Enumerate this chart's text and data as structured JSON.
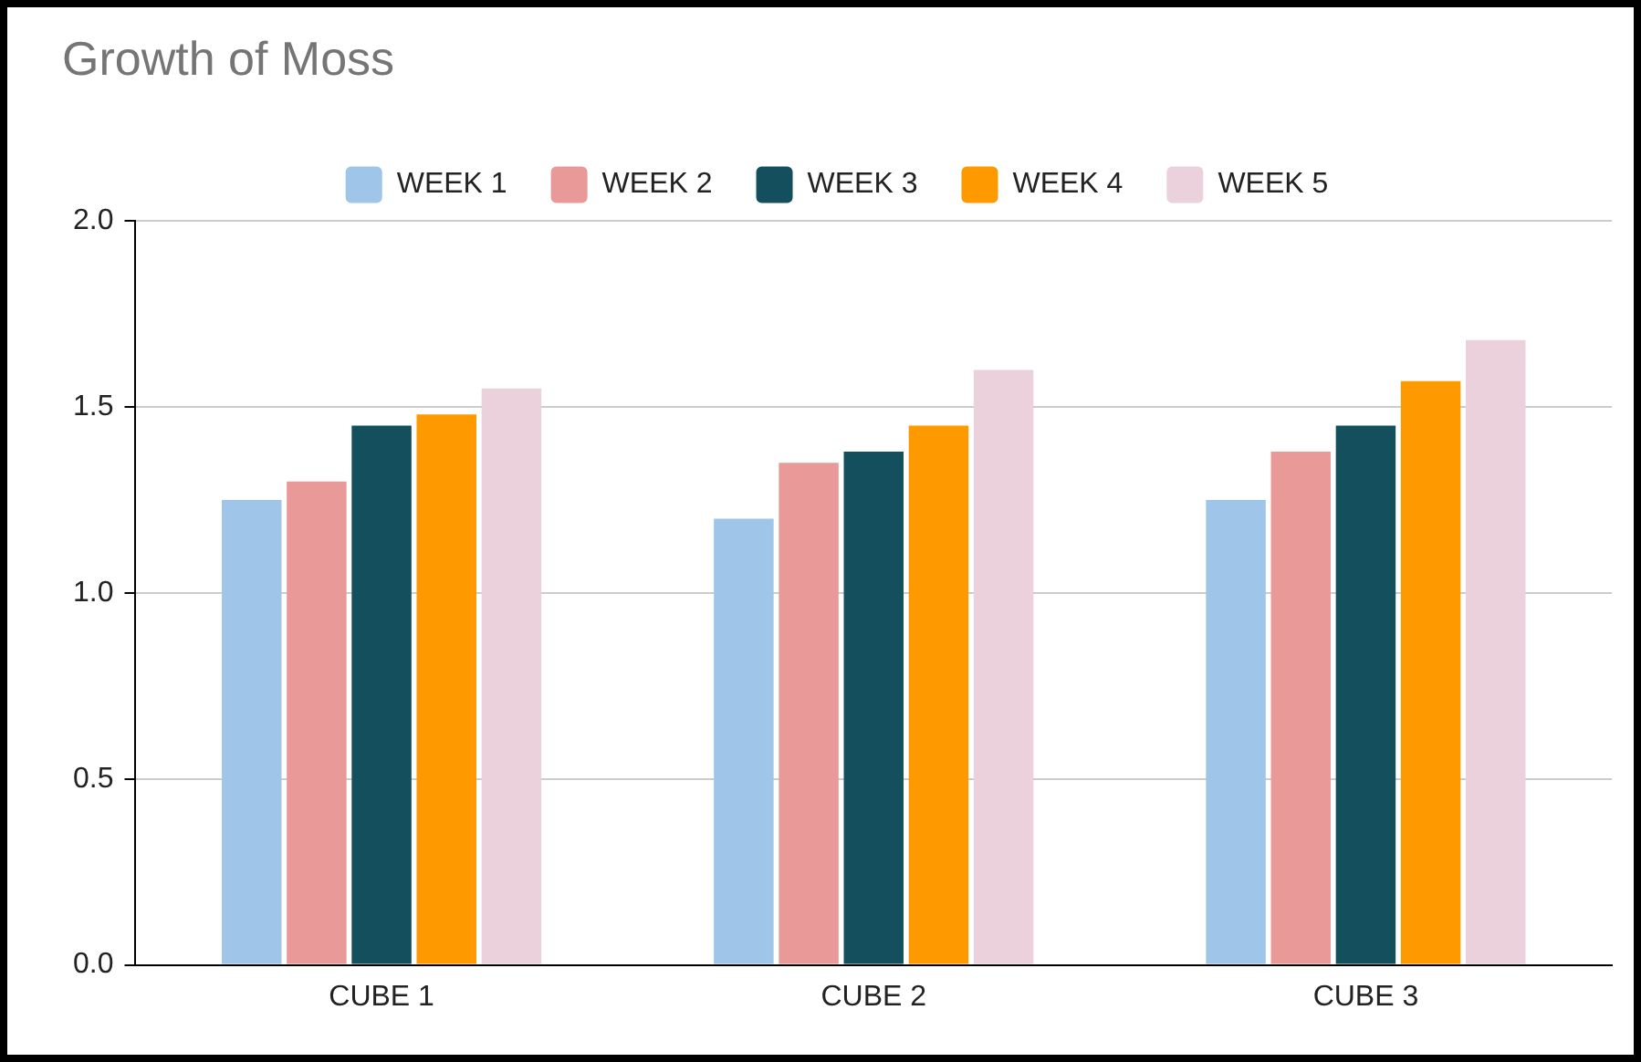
{
  "chart_data": {
    "type": "bar",
    "title": "Growth of Moss",
    "categories": [
      "CUBE 1",
      "CUBE 2",
      "CUBE 3"
    ],
    "series": [
      {
        "name": "WEEK 1",
        "color": "#9fc5e8",
        "values": [
          1.25,
          1.2,
          1.25
        ]
      },
      {
        "name": "WEEK 2",
        "color": "#ea9999",
        "values": [
          1.3,
          1.35,
          1.38
        ]
      },
      {
        "name": "WEEK 3",
        "color": "#134f5c",
        "values": [
          1.45,
          1.38,
          1.45
        ]
      },
      {
        "name": "WEEK 4",
        "color": "#ff9900",
        "values": [
          1.48,
          1.45,
          1.57
        ]
      },
      {
        "name": "WEEK 5",
        "color": "#ead1dc",
        "values": [
          1.55,
          1.6,
          1.68
        ]
      }
    ],
    "ylim": [
      0,
      2
    ],
    "yticks": [
      {
        "value": 0,
        "label": "0.0"
      },
      {
        "value": 0.5,
        "label": "0.5"
      },
      {
        "value": 1,
        "label": "1.0"
      },
      {
        "value": 1.5,
        "label": "1.5"
      },
      {
        "value": 2,
        "label": "2.0"
      }
    ],
    "grid": "y",
    "legend": "top"
  }
}
